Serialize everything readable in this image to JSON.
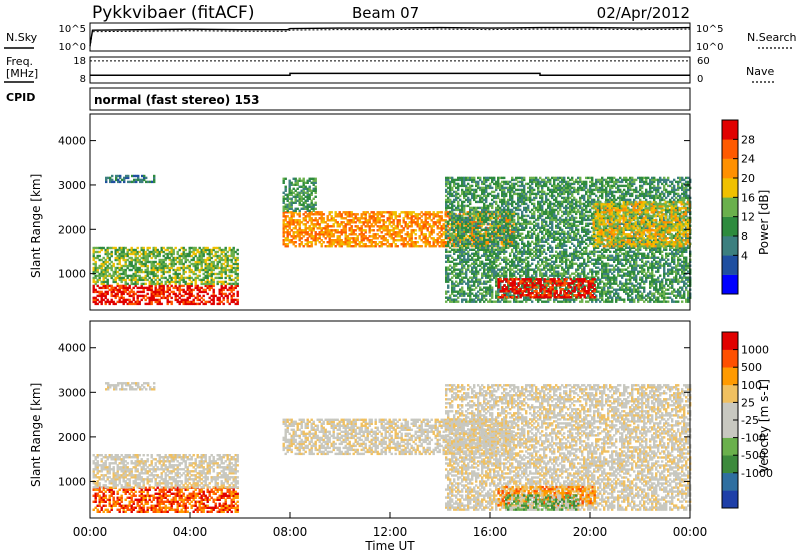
{
  "header": {
    "station": "Pykkvibaer (fitACF)",
    "beam": "Beam 07",
    "date": "02/Apr/2012"
  },
  "panel_labels": {
    "nsky": "N.Sky",
    "nsearch": "N.Search",
    "freq_top": "Freq.",
    "freq_bottom": "[MHz]",
    "nave": "Nave",
    "cpid": "CPID",
    "cpid_value": "normal (fast stereo) 153"
  },
  "colorbars": {
    "power": {
      "label": "Power [dB]",
      "colors": [
        "#0000ff",
        "#1f4fa0",
        "#3c7f7f",
        "#2e8b3e",
        "#6ab04c",
        "#f0c000",
        "#ff9000",
        "#ff5a00",
        "#e00000"
      ],
      "ticks": [
        "4",
        "8",
        "12",
        "16",
        "20",
        "24",
        "28"
      ]
    },
    "velocity": {
      "label": "Velocity [m s-1]",
      "colors": [
        "#e00000",
        "#ff5000",
        "#ff9a00",
        "#f0c060",
        "#c8c8c0",
        "#c8c8c0",
        "#6ab04c",
        "#3c8a3c",
        "#2f6fa0",
        "#1e3fa8"
      ],
      "ticks": [
        "1000",
        "500",
        "100",
        "25",
        "-25",
        "-100",
        "-500",
        "-1000"
      ]
    }
  },
  "chart_data": [
    {
      "type": "line",
      "name": "noise panel",
      "ylabel_left": "N.Sky",
      "ylabel_right": "N.Search",
      "left_ticks": [
        "10^5",
        "10^0"
      ],
      "right_ticks": [
        "10^5",
        "10^0"
      ],
      "x": [
        0,
        0.1,
        2,
        4,
        6,
        7.9,
        8,
        10,
        12,
        14,
        16,
        18,
        20,
        22,
        24
      ],
      "values": [
        1,
        4,
        4.1,
        4.2,
        4.1,
        4.1,
        4.3,
        4.4,
        4.4,
        4.5,
        4.4,
        4.5,
        4.5,
        4.4,
        4.5
      ]
    },
    {
      "type": "line",
      "name": "freq/nave panel",
      "left_ticks": [
        "18",
        "8"
      ],
      "right_ticks": [
        "60",
        "0"
      ],
      "freq_x": [
        0,
        8,
        8,
        18,
        18,
        24
      ],
      "freq_values": [
        11,
        11,
        11.7,
        11.7,
        11,
        11
      ],
      "nave_values": [
        51,
        51,
        51,
        51,
        51,
        51
      ]
    },
    {
      "type": "heatmap",
      "name": "power",
      "ylabel": "Slant Range [km]",
      "yticks": [
        "1000",
        "2000",
        "3000",
        "4000"
      ],
      "ylim": [
        180,
        4600
      ],
      "xlim": [
        0,
        24
      ],
      "colorbar": "power",
      "regions": [
        {
          "t0": 0.1,
          "t1": 5.9,
          "r0": 300,
          "r1": 750,
          "level": 8
        },
        {
          "t0": 0.1,
          "t1": 5.9,
          "r0": 750,
          "r1": 1600,
          "level": 4
        },
        {
          "t0": 0.6,
          "t1": 2.6,
          "r0": 3050,
          "r1": 3200,
          "level": 2
        },
        {
          "t0": 7.7,
          "t1": 16.9,
          "r0": 1600,
          "r1": 2400,
          "level": 6
        },
        {
          "t0": 7.7,
          "t1": 9.0,
          "r0": 2400,
          "r1": 3150,
          "level": 3
        },
        {
          "t0": 14.2,
          "t1": 24,
          "r0": 350,
          "r1": 3150,
          "level": 3
        },
        {
          "t0": 16.3,
          "t1": 20.2,
          "r0": 450,
          "r1": 900,
          "level": 8
        },
        {
          "t0": 20.1,
          "t1": 24,
          "r0": 1600,
          "r1": 2600,
          "level": 5
        }
      ]
    },
    {
      "type": "heatmap",
      "name": "velocity",
      "ylabel": "Slant Range [km]",
      "yticks": [
        "1000",
        "2000",
        "3000",
        "4000"
      ],
      "ylim": [
        180,
        4600
      ],
      "xlim": [
        0,
        24
      ],
      "colorbar": "velocity",
      "xticks": [
        "00:00",
        "04:00",
        "08:00",
        "12:00",
        "16:00",
        "20:00",
        "00:00"
      ],
      "xlabel": "Time UT",
      "regions": [
        {
          "t0": 0.1,
          "t1": 5.9,
          "r0": 300,
          "r1": 850,
          "level": 1
        },
        {
          "t0": 0.1,
          "t1": 5.9,
          "r0": 850,
          "r1": 1600,
          "level": 4
        },
        {
          "t0": 0.6,
          "t1": 2.6,
          "r0": 3050,
          "r1": 3200,
          "level": 4
        },
        {
          "t0": 7.7,
          "t1": 16.9,
          "r0": 1600,
          "r1": 2400,
          "level": 4
        },
        {
          "t0": 14.2,
          "t1": 24,
          "r0": 350,
          "r1": 3150,
          "level": 4
        },
        {
          "t0": 16.3,
          "t1": 20.2,
          "r0": 450,
          "r1": 900,
          "level": 2
        },
        {
          "t0": 16.6,
          "t1": 19.5,
          "r0": 350,
          "r1": 700,
          "level": 6
        }
      ]
    }
  ]
}
